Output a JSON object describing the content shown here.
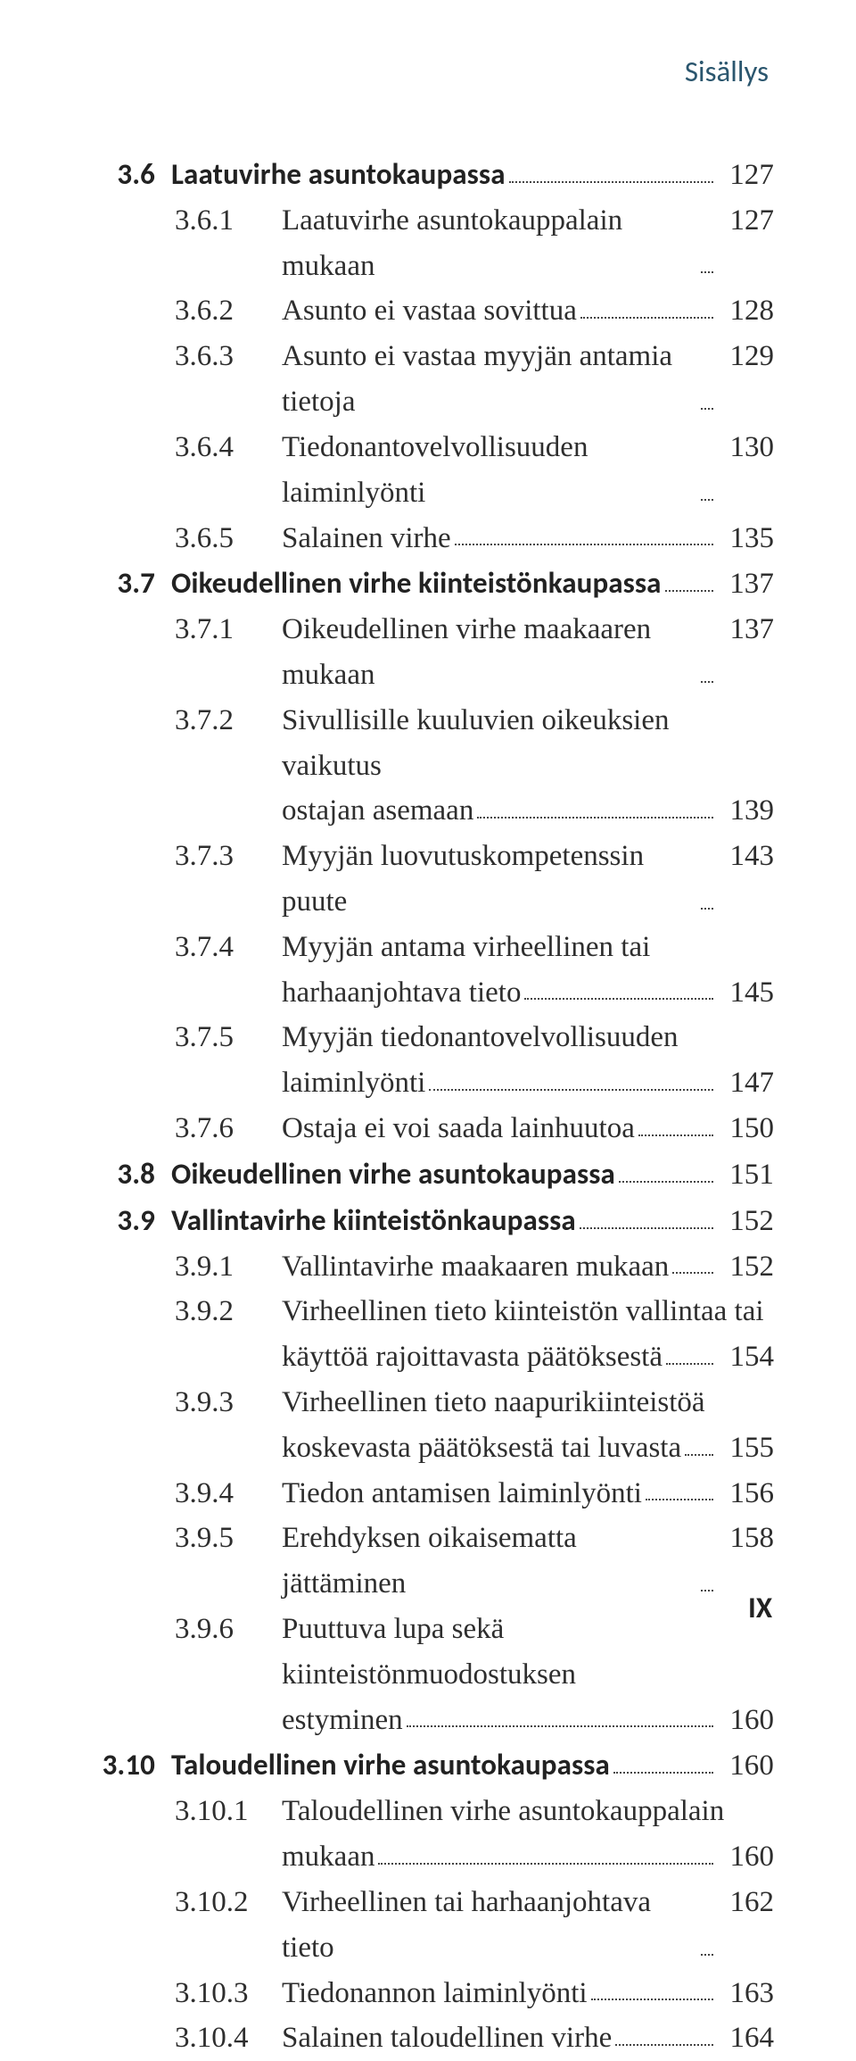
{
  "running_head": "Sisällys",
  "page_number": "IX",
  "colors": {
    "heading": "#2b566e",
    "text": "#2e2e2e",
    "background": "#ffffff"
  },
  "typography": {
    "body_family": "Georgia/serif",
    "head_family": "Calibri/sans-serif",
    "body_size_pt": 25,
    "line_height": 1.54
  },
  "entries": [
    {
      "level": 1,
      "num": "3.6",
      "title": "Laatuvirhe asuntokaupassa",
      "page": "127",
      "bold": true
    },
    {
      "level": 2,
      "num": "3.6.1",
      "title": "Laatuvirhe asuntokauppalain mukaan",
      "page": "127"
    },
    {
      "level": 2,
      "num": "3.6.2",
      "title": "Asunto ei vastaa sovittua",
      "page": "128"
    },
    {
      "level": 2,
      "num": "3.6.3",
      "title": "Asunto ei vastaa myyjän antamia tietoja",
      "page": "129"
    },
    {
      "level": 2,
      "num": "3.6.4",
      "title": "Tiedonantovelvollisuuden laiminlyönti",
      "page": "130"
    },
    {
      "level": 2,
      "num": "3.6.5",
      "title": "Salainen virhe",
      "page": "135"
    },
    {
      "level": 1,
      "num": "3.7",
      "title": "Oikeudellinen virhe kiinteistönkaupassa",
      "page": "137",
      "bold": true
    },
    {
      "level": 2,
      "num": "3.7.1",
      "title": "Oikeudellinen virhe maakaaren mukaan",
      "page": "137"
    },
    {
      "level": 2,
      "num": "3.7.2",
      "title_lines": [
        "Sivullisille kuuluvien oikeuksien vaikutus",
        "ostajan asemaan"
      ],
      "page": "139"
    },
    {
      "level": 2,
      "num": "3.7.3",
      "title": "Myyjän luovutuskompetenssin puute",
      "page": "143"
    },
    {
      "level": 2,
      "num": "3.7.4",
      "title_lines": [
        "Myyjän antama virheellinen tai",
        "harhaanjohtava tieto"
      ],
      "page": "145"
    },
    {
      "level": 2,
      "num": "3.7.5",
      "title_lines": [
        "Myyjän tiedonantovelvollisuuden",
        "laiminlyönti"
      ],
      "page": "147"
    },
    {
      "level": 2,
      "num": "3.7.6",
      "title": "Ostaja ei voi saada lainhuutoa",
      "page": "150"
    },
    {
      "level": 1,
      "num": "3.8",
      "title": "Oikeudellinen virhe asuntokaupassa",
      "page": "151",
      "bold": true
    },
    {
      "level": 1,
      "num": "3.9",
      "title": "Vallintavirhe kiinteistönkaupassa",
      "page": "152",
      "bold": true
    },
    {
      "level": 2,
      "num": "3.9.1",
      "title": "Vallintavirhe maakaaren mukaan",
      "page": "152"
    },
    {
      "level": 2,
      "num": "3.9.2",
      "title_lines": [
        "Virheellinen tieto kiinteistön vallintaa tai",
        "käyttöä rajoittavasta päätöksestä"
      ],
      "page": "154"
    },
    {
      "level": 2,
      "num": "3.9.3",
      "title_lines": [
        "Virheellinen tieto naapurikiinteistöä",
        "koskevasta päätöksestä tai luvasta"
      ],
      "page": "155"
    },
    {
      "level": 2,
      "num": "3.9.4",
      "title": "Tiedon antamisen laiminlyönti",
      "page": "156"
    },
    {
      "level": 2,
      "num": "3.9.5",
      "title": "Erehdyksen oikaisematta jättäminen",
      "page": "158"
    },
    {
      "level": 2,
      "num": "3.9.6",
      "title_lines": [
        "Puuttuva lupa sekä kiinteistönmuodostuksen",
        "estyminen"
      ],
      "page": "160"
    },
    {
      "level": 1,
      "num": "3.10",
      "title": "Taloudellinen virhe asuntokaupassa",
      "page": "160",
      "bold": true
    },
    {
      "level": 2,
      "num": "3.10.1",
      "title_lines": [
        "Taloudellinen virhe asuntokauppalain",
        "mukaan"
      ],
      "page": "160"
    },
    {
      "level": 2,
      "num": "3.10.2",
      "title": "Virheellinen tai harhaanjohtava tieto",
      "page": "162"
    },
    {
      "level": 2,
      "num": "3.10.3",
      "title": "Tiedonannon laiminlyönti",
      "page": "163"
    },
    {
      "level": 2,
      "num": "3.10.4",
      "title": "Salainen taloudellinen virhe",
      "page": "164"
    }
  ]
}
